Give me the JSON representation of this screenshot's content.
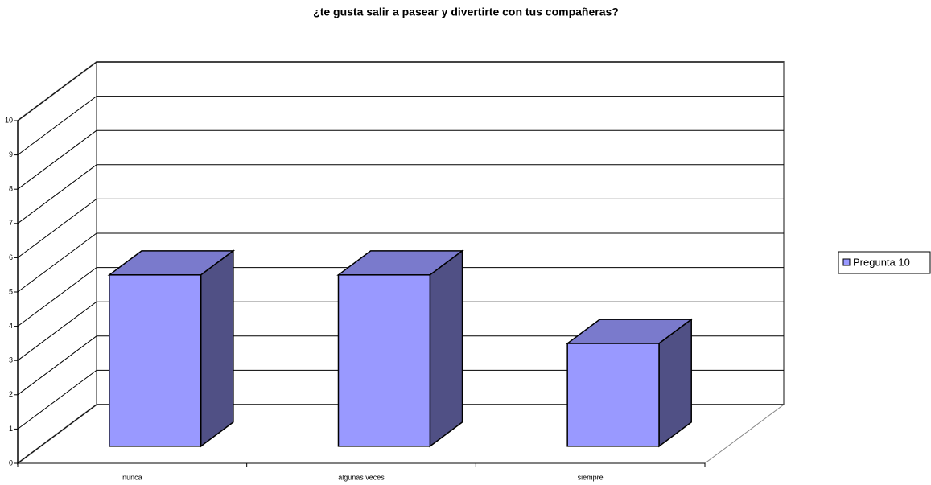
{
  "chart_data": {
    "type": "bar3d",
    "title": "¿te gusta salir a pasear y divertirte con tus compañeras?",
    "categories": [
      "nunca",
      "algunas veces",
      "siempre"
    ],
    "series": [
      {
        "name": "Pregunta 10",
        "color": "#9999ff",
        "values": [
          5,
          5,
          3
        ]
      }
    ],
    "ylim": [
      0,
      10
    ],
    "yticks": [
      0,
      1,
      2,
      3,
      4,
      5,
      6,
      7,
      8,
      9,
      10
    ],
    "grid": true,
    "legend": "right"
  }
}
